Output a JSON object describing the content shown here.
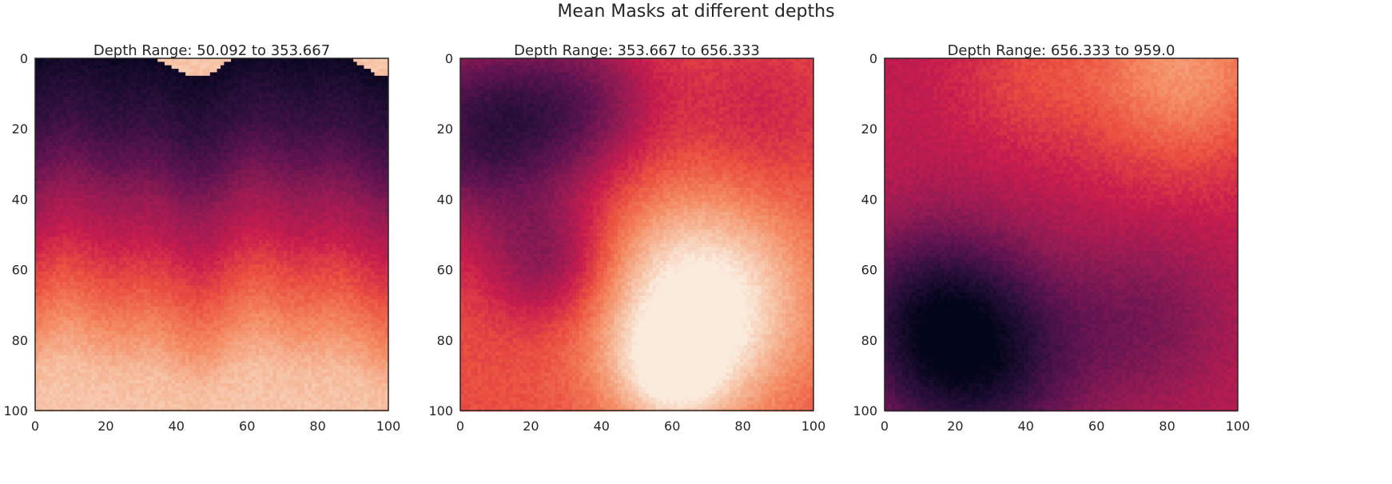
{
  "figure": {
    "title": "Mean Masks at different depths"
  },
  "colormap": [
    "#03051a",
    "#2b0f3b",
    "#5d1350",
    "#931b53",
    "#c71c4e",
    "#eb4f40",
    "#f48860",
    "#f6bb9c",
    "#faebdd"
  ],
  "chart_data": [
    {
      "type": "heatmap",
      "title": "Depth Range: 50.092 to 353.667",
      "x_ticks": [
        0,
        20,
        40,
        60,
        80,
        100
      ],
      "y_ticks": [
        0,
        20,
        40,
        60,
        80,
        100
      ],
      "xlim": [
        0,
        100
      ],
      "ylim": [
        100,
        0
      ],
      "grid": false,
      "grid_resolution": 101,
      "intensity_description": "dark near top (rows 0-20), magenta around rows 40-55, orange around 65-75, very light near rows 90-100",
      "row_profile": [
        [
          0,
          0.03
        ],
        [
          10,
          0.1
        ],
        [
          20,
          0.16
        ],
        [
          30,
          0.26
        ],
        [
          40,
          0.38
        ],
        [
          50,
          0.47
        ],
        [
          60,
          0.58
        ],
        [
          70,
          0.68
        ],
        [
          80,
          0.78
        ],
        [
          90,
          0.88
        ],
        [
          100,
          0.9
        ]
      ]
    },
    {
      "type": "heatmap",
      "title": "Depth Range: 353.667 to 656.333",
      "x_ticks": [
        0,
        20,
        40,
        60,
        80,
        100
      ],
      "y_ticks": [
        0,
        20,
        40,
        60,
        80,
        100
      ],
      "xlim": [
        0,
        100
      ],
      "ylim": [
        100,
        0
      ],
      "grid": false,
      "grid_resolution": 101,
      "intensity_description": "dark top-left, magenta upper right, light blotch center-right near x 50-80 y 50-90, orange elsewhere",
      "blobs": [
        {
          "x": 5,
          "y": 20,
          "r": 28,
          "v": -0.45
        },
        {
          "x": 35,
          "y": 12,
          "r": 22,
          "v": -0.25
        },
        {
          "x": 25,
          "y": 58,
          "r": 18,
          "v": -0.25
        },
        {
          "x": 68,
          "y": 70,
          "r": 30,
          "v": 0.45
        },
        {
          "x": 60,
          "y": 90,
          "r": 16,
          "v": 0.25
        },
        {
          "x": 85,
          "y": 15,
          "r": 22,
          "v": -0.1
        }
      ],
      "base": 0.62
    },
    {
      "type": "heatmap",
      "title": "Depth Range: 656.333 to 959.0",
      "x_ticks": [
        0,
        20,
        40,
        60,
        80,
        100
      ],
      "y_ticks": [
        0,
        20,
        40,
        60,
        80,
        100
      ],
      "xlim": [
        0,
        100
      ],
      "ylim": [
        100,
        0
      ],
      "grid": false,
      "grid_resolution": 101,
      "intensity_description": "light orange upper right, red/orange band at top, magenta middle, dark bottom-left",
      "blobs": [
        {
          "x": 85,
          "y": 2,
          "r": 30,
          "v": 0.3
        },
        {
          "x": 25,
          "y": 85,
          "r": 30,
          "v": -0.42
        },
        {
          "x": 10,
          "y": 70,
          "r": 25,
          "v": -0.2
        },
        {
          "x": 75,
          "y": 75,
          "r": 25,
          "v": -0.15
        },
        {
          "x": 40,
          "y": 5,
          "r": 20,
          "v": 0.1
        }
      ],
      "base": 0.48
    }
  ]
}
